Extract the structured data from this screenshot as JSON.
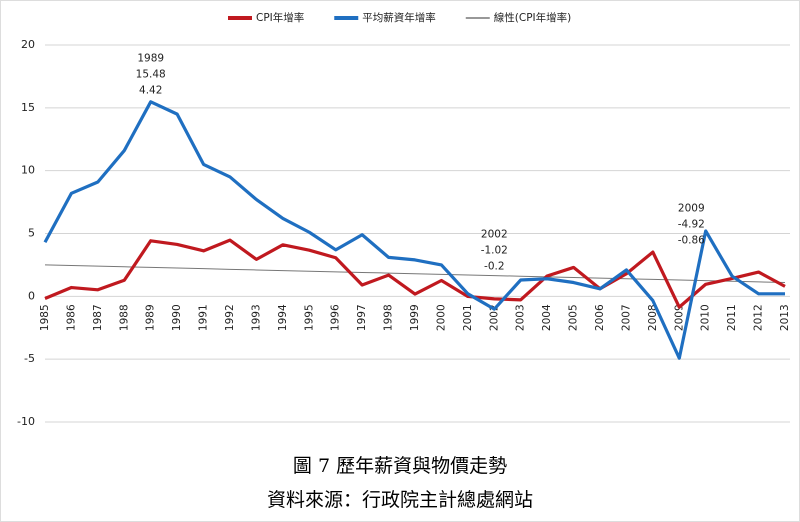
{
  "chart_data": {
    "type": "line",
    "title": "圖 7 歷年薪資與物價走勢",
    "source": "資料來源：行政院主計總處網站",
    "categories": [
      "1985",
      "1986",
      "1987",
      "1988",
      "1989",
      "1990",
      "1991",
      "1992",
      "1993",
      "1994",
      "1995",
      "1996",
      "1997",
      "1998",
      "1999",
      "2000",
      "2001",
      "2002",
      "2003",
      "2004",
      "2005",
      "2006",
      "2007",
      "2008",
      "2009",
      "2010",
      "2011",
      "2012",
      "2013"
    ],
    "series": [
      {
        "name": "CPI年增率",
        "color": "#c0191f",
        "style": "main",
        "values": [
          -0.17,
          0.7,
          0.52,
          1.28,
          4.42,
          4.13,
          3.62,
          4.47,
          2.94,
          4.1,
          3.67,
          3.07,
          0.9,
          1.69,
          0.18,
          1.26,
          -0.01,
          -0.2,
          -0.28,
          1.62,
          2.3,
          0.6,
          1.8,
          3.52,
          -0.86,
          0.96,
          1.42,
          1.93,
          0.79
        ]
      },
      {
        "name": "平均薪資年增率",
        "color": "#1f6fc1",
        "style": "main",
        "values": [
          4.3,
          8.2,
          9.1,
          11.6,
          15.48,
          14.5,
          10.5,
          9.5,
          7.7,
          6.2,
          5.1,
          3.7,
          4.9,
          3.1,
          2.9,
          2.5,
          0.2,
          -1.02,
          1.3,
          1.4,
          1.1,
          0.6,
          2.1,
          -0.34,
          -4.92,
          5.2,
          1.6,
          0.2,
          0.2
        ]
      },
      {
        "name": "線性(CPI年增率)",
        "color": "#777777",
        "style": "trend",
        "values": [
          2.5,
          2.45,
          2.4,
          2.35,
          2.3,
          2.25,
          2.2,
          2.15,
          2.1,
          2.05,
          2.0,
          1.95,
          1.9,
          1.85,
          1.8,
          1.75,
          1.7,
          1.65,
          1.6,
          1.55,
          1.5,
          1.45,
          1.4,
          1.35,
          1.3,
          1.25,
          1.2,
          1.15,
          1.1
        ]
      }
    ],
    "annotations": [
      {
        "category": "1989",
        "text": [
          "1989",
          "15.48",
          "4.42"
        ]
      },
      {
        "category": "2002",
        "text": [
          "2002",
          "-1.02",
          "-0.2"
        ]
      },
      {
        "category": "2009",
        "text": [
          "2009",
          "-4.92",
          "-0.86"
        ]
      }
    ],
    "ylim": [
      -10,
      20
    ],
    "yticks": [
      -10,
      -5,
      0,
      5,
      10,
      15,
      20
    ],
    "grid": true
  }
}
